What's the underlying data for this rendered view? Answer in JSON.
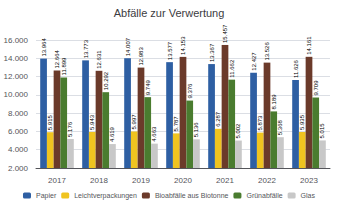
{
  "chart_data": {
    "type": "bar",
    "title": "Abfälle zur Verwertung",
    "categories": [
      "2017",
      "2018",
      "2019",
      "2020",
      "2021",
      "2022",
      "2023"
    ],
    "series": [
      {
        "name": "Papier",
        "color": "#2E5FA3",
        "values": [
          13964,
          13773,
          14007,
          13577,
          13367,
          12427,
          11626
        ],
        "value_labels": [
          "13.964",
          "13.773",
          "14.007",
          "13.577",
          "13.367",
          "12.427",
          "11.626"
        ]
      },
      {
        "name": "Leichtverpackungen",
        "color": "#F0C420",
        "values": [
          5915,
          5943,
          5997,
          5787,
          6287,
          5873,
          5935
        ],
        "value_labels": [
          "5.915",
          "5.943",
          "5.997",
          "5.787",
          "6.287",
          "5.873",
          "5.935"
        ]
      },
      {
        "name": "Bioabfälle aus Biotonne",
        "color": "#6B3A2A",
        "values": [
          12664,
          12631,
          12983,
          14153,
          15457,
          13526,
          14161
        ],
        "value_labels": [
          "12.664",
          "12.631",
          "12.983",
          "14.153",
          "15.457",
          "13.526",
          "14.161"
        ]
      },
      {
        "name": "Grünabfälle",
        "color": "#4A7C2F",
        "values": [
          11899,
          10292,
          9749,
          9376,
          11662,
          8189,
          9709
        ],
        "value_labels": [
          "11.899",
          "10.292",
          "9.749",
          "9.376",
          "11.662",
          "8.189",
          "9.709"
        ]
      },
      {
        "name": "Glas",
        "color": "#C8C8C8",
        "values": [
          5176,
          4619,
          4663,
          5136,
          5002,
          5368,
          5015
        ],
        "value_labels": [
          "5.176",
          "4.619",
          "4.663",
          "5.136",
          "5.002",
          "5.368",
          "5.015"
        ]
      }
    ],
    "ylim": [
      2000,
      16000
    ],
    "yticks": [
      {
        "value": 2000,
        "label": "2.000"
      },
      {
        "value": 4000,
        "label": "4.000"
      },
      {
        "value": 6000,
        "label": "6.000"
      },
      {
        "value": 8000,
        "label": "8.000"
      },
      {
        "value": 10000,
        "label": "10.000"
      },
      {
        "value": 12000,
        "label": "12.000"
      },
      {
        "value": 14000,
        "label": "14.000"
      },
      {
        "value": 16000,
        "label": "16.000"
      }
    ],
    "grid": true,
    "legend": "bottom",
    "data_labels": true
  }
}
